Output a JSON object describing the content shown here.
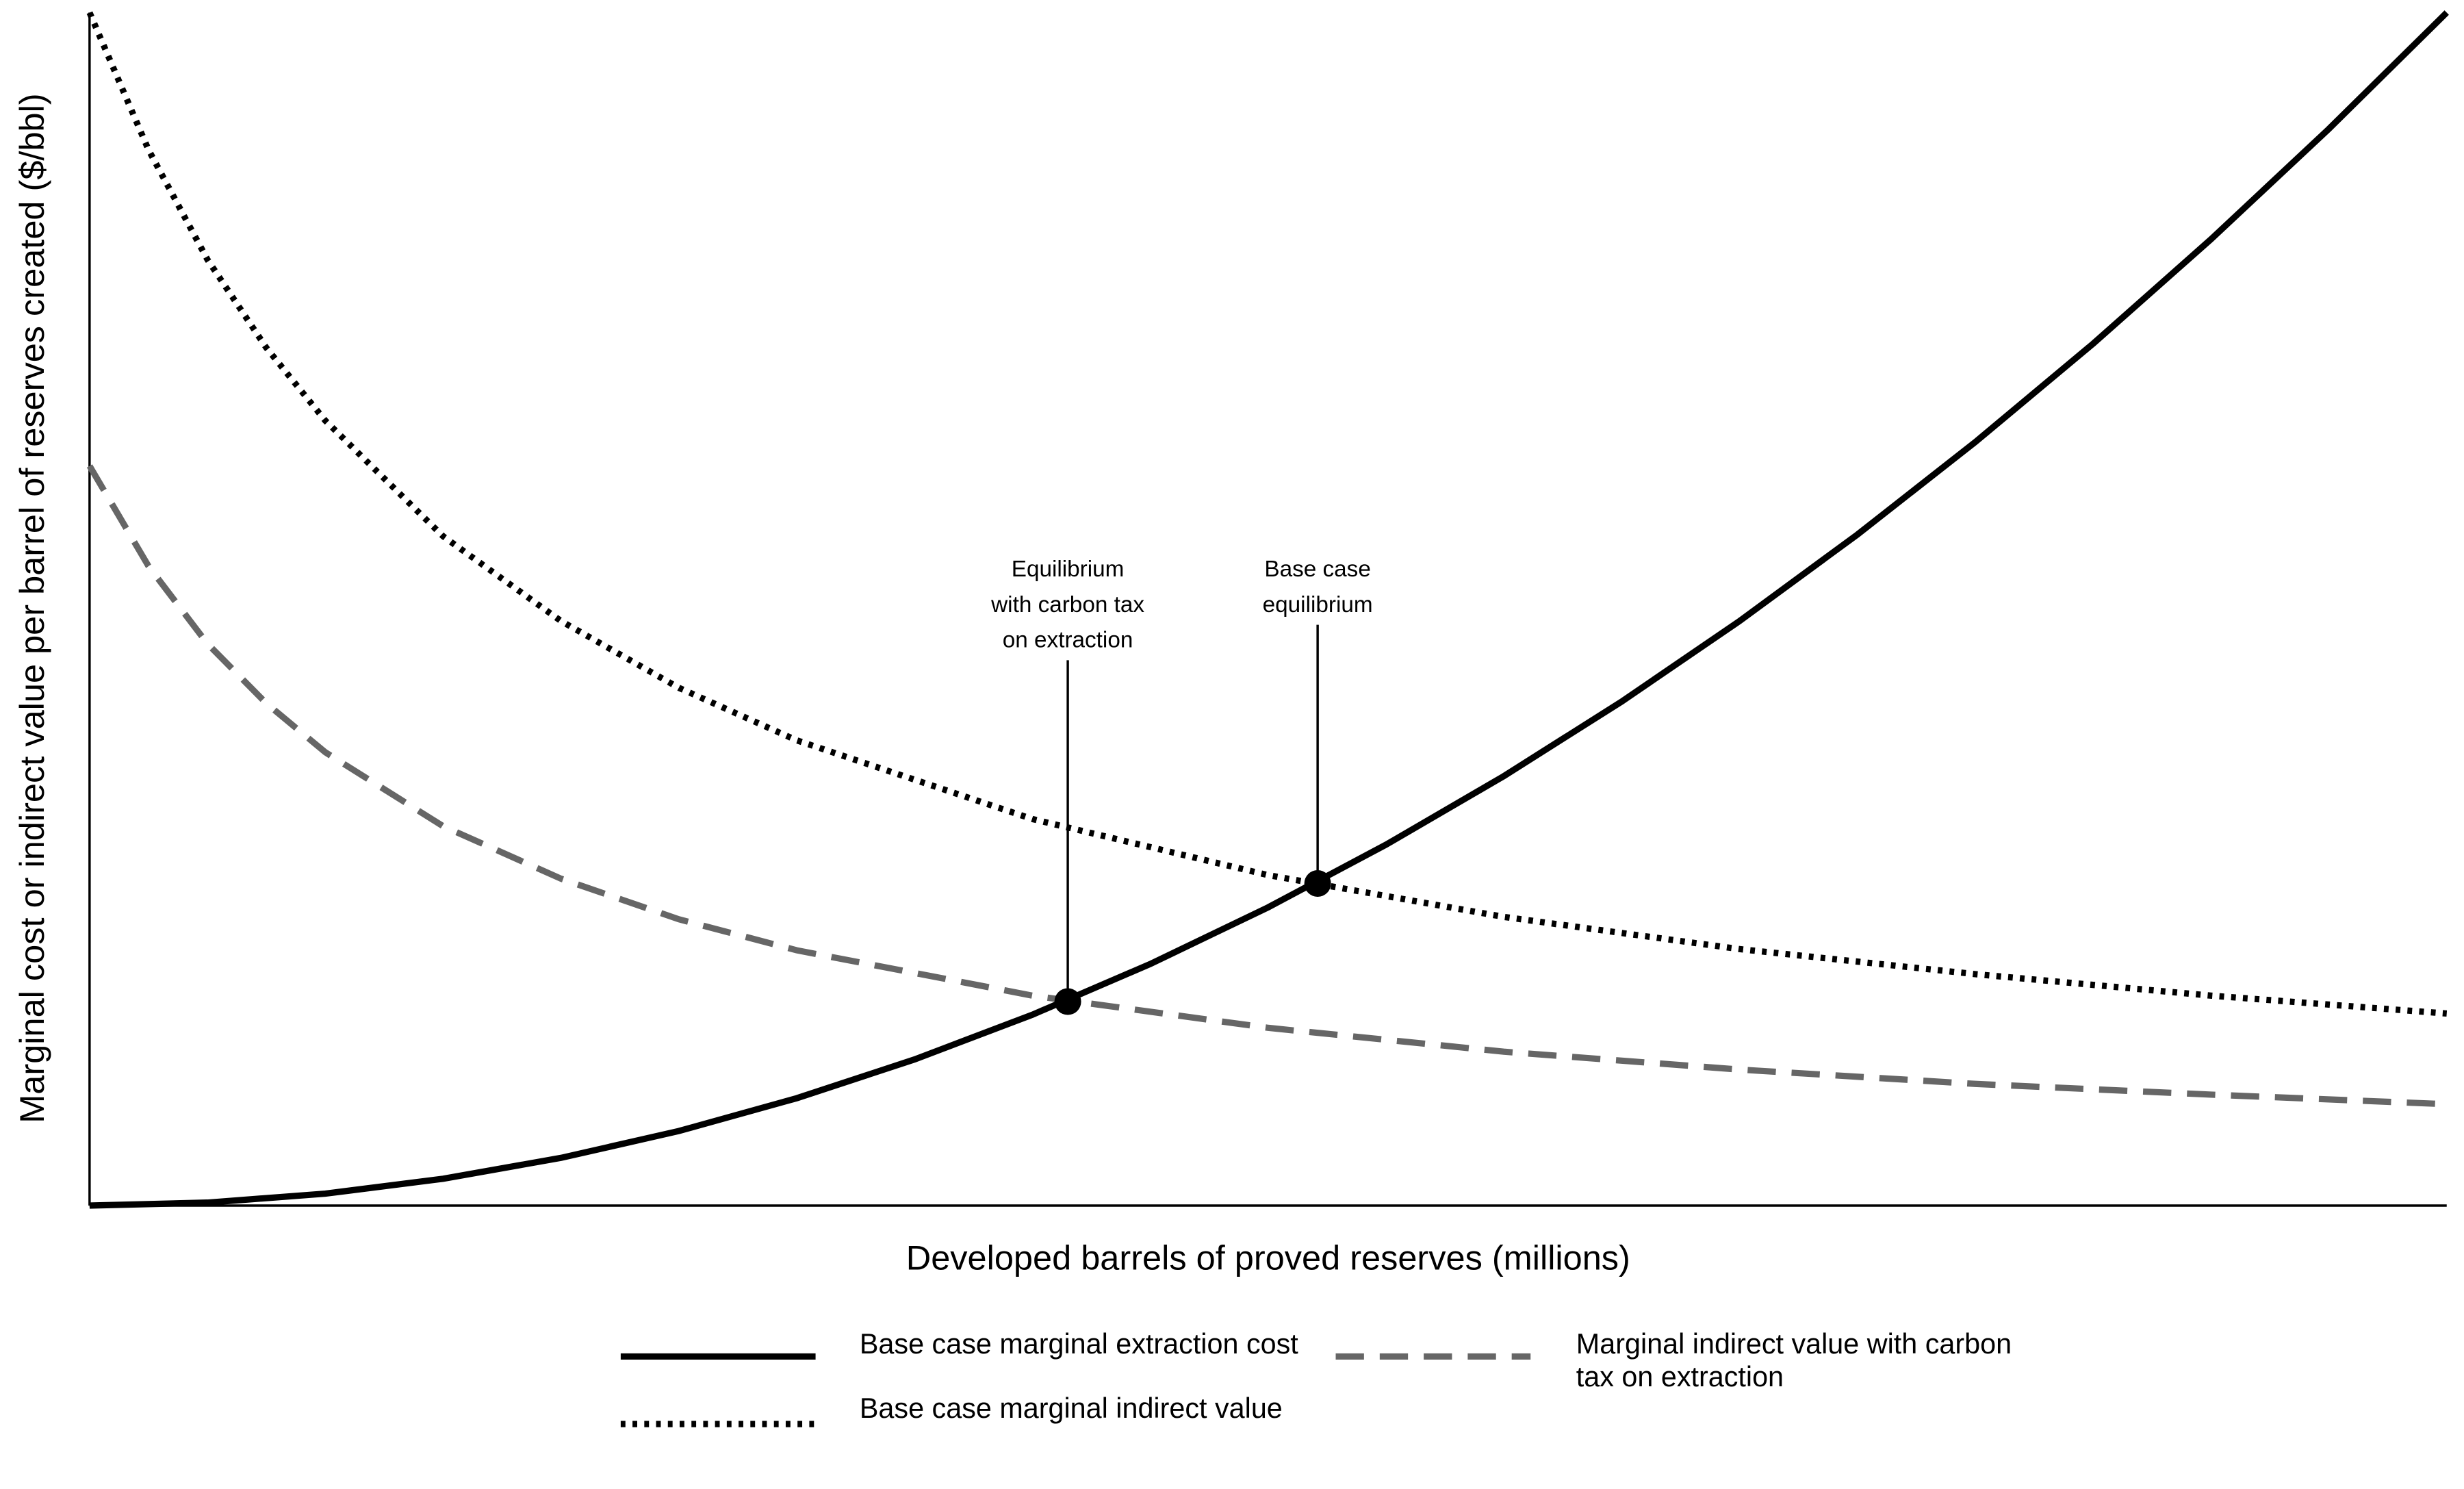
{
  "chart_data": {
    "type": "line",
    "x_label": "Developed barrels of proved reserves (millions)",
    "y_label": "Marginal cost or indirect value per barrel of reserves created ($/bbl)",
    "xlim": [
      0,
      100
    ],
    "ylim": [
      0,
      100
    ],
    "grid": false,
    "legend_position": "bottom",
    "series": [
      {
        "name": "Base case marginal extraction cost",
        "color": "#000000",
        "style": "solid",
        "x": [
          0,
          5,
          10,
          15,
          20,
          25,
          30,
          35,
          40,
          45,
          50,
          55,
          60,
          65,
          70,
          75,
          80,
          85,
          90,
          95,
          100
        ],
        "values": [
          0,
          0.25,
          1,
          2.25,
          4,
          6.25,
          9,
          12.25,
          16,
          20.25,
          25,
          30.25,
          36,
          42.25,
          49,
          56.25,
          64,
          72.25,
          81,
          90.25,
          100
        ]
      },
      {
        "name": "Base case marginal indirect value",
        "color": "#000000",
        "style": "dotted",
        "x": [
          0,
          2.5,
          5,
          7.5,
          10,
          15,
          20,
          25,
          30,
          40,
          50,
          60,
          70,
          80,
          90,
          100
        ],
        "values": [
          100,
          88.5,
          79.3,
          71.9,
          65.8,
          56.1,
          49.0,
          43.4,
          39.0,
          32.4,
          27.7,
          24.2,
          21.5,
          19.4,
          17.6,
          16.1
        ]
      },
      {
        "name": "Marginal indirect value with carbon tax on extraction",
        "color": "#666666",
        "style": "dashed",
        "x": [
          0,
          2.5,
          5,
          7.5,
          10,
          15,
          20,
          25,
          30,
          40,
          50,
          60,
          70,
          80,
          90,
          100
        ],
        "values": [
          62.0,
          53.6,
          47.1,
          42.1,
          38.0,
          31.8,
          27.4,
          24.0,
          21.4,
          17.6,
          14.9,
          12.9,
          11.4,
          10.2,
          9.3,
          8.5
        ]
      }
    ],
    "annotations": [
      {
        "text": [
          "Equilibrium",
          "with carbon tax",
          "on extraction"
        ],
        "x": 41.5,
        "y": 17.1
      },
      {
        "text": [
          "Base case",
          "equilibrium"
        ],
        "x": 52.1,
        "y": 27.0
      }
    ]
  }
}
